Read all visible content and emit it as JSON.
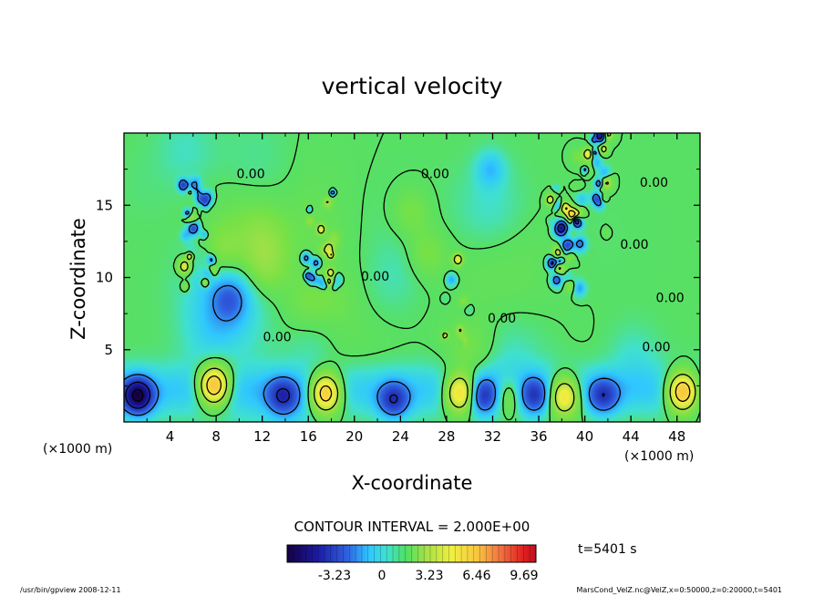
{
  "chart_data": {
    "type": "heatmap",
    "title": "vertical velocity",
    "xlabel": "X-coordinate",
    "ylabel": "Z-coordinate",
    "x_unit": "(×1000 m)",
    "z_unit": "(×1000 m)",
    "xlim": [
      0,
      50
    ],
    "ylim": [
      0,
      20
    ],
    "x_ticks": [
      "4",
      "8",
      "12",
      "16",
      "20",
      "24",
      "28",
      "32",
      "36",
      "40",
      "44",
      "48"
    ],
    "x_tick_values": [
      4,
      8,
      12,
      16,
      20,
      24,
      28,
      32,
      36,
      40,
      44,
      48
    ],
    "y_ticks": [
      "5",
      "10",
      "15"
    ],
    "y_tick_values": [
      5,
      10,
      15
    ],
    "contour_interval_text": "CONTOUR INTERVAL = 2.000E+00",
    "contour_label": "0.00",
    "contour_label_positions": [
      {
        "x": 11,
        "z": 17.2
      },
      {
        "x": 27,
        "z": 17.2
      },
      {
        "x": 46,
        "z": 16.6
      },
      {
        "x": 44.3,
        "z": 12.3
      },
      {
        "x": 47.4,
        "z": 8.6
      },
      {
        "x": 46.2,
        "z": 5.2
      },
      {
        "x": 32.8,
        "z": 7.2
      },
      {
        "x": 21.8,
        "z": 10.1
      },
      {
        "x": 13.3,
        "z": 5.9
      }
    ],
    "colorbar": {
      "ticks": [
        "-3.23",
        "0",
        "3.23",
        "6.46",
        "9.69"
      ],
      "tick_values": [
        -3.23,
        0,
        3.23,
        6.46,
        9.69
      ],
      "range": [
        -6.46,
        10.5
      ]
    },
    "time_label": "t=5401 s",
    "features": {
      "updraft_cores": [
        {
          "x": 7.8,
          "z": 2.5,
          "amp": 6.5
        },
        {
          "x": 17.5,
          "z": 2.0,
          "amp": 6.0
        },
        {
          "x": 29.2,
          "z": 2.0,
          "amp": 5.2
        },
        {
          "x": 38.2,
          "z": 1.8,
          "amp": 4.8
        },
        {
          "x": 48.5,
          "z": 2.1,
          "amp": 6.5
        },
        {
          "x": 33.4,
          "z": 1.8,
          "amp": 2.2
        }
      ],
      "downdraft_cores": [
        {
          "x": 1.2,
          "z": 1.8,
          "amp": -5.5
        },
        {
          "x": 13.8,
          "z": 1.8,
          "amp": -3.0
        },
        {
          "x": 23.4,
          "z": 1.5,
          "amp": -3.2
        },
        {
          "x": 31.2,
          "z": 1.8,
          "amp": -3.0
        },
        {
          "x": 35.6,
          "z": 1.8,
          "amp": -2.8
        },
        {
          "x": 41.6,
          "z": 1.8,
          "amp": -3.0
        }
      ],
      "turbulent_columns": [
        {
          "x": 6.2,
          "z": 13.0
        },
        {
          "x": 17.2,
          "z": 12.5
        },
        {
          "x": 38.3,
          "z": 12.8
        },
        {
          "x": 40.6,
          "z": 16.5
        },
        {
          "x": 28.7,
          "z": 8.6
        }
      ]
    }
  },
  "footer": {
    "left": "/usr/bin/gpview   2008-12-11",
    "right": "MarsCond_VelZ.nc@VelZ,x=0:50000,z=0:20000,t=5401"
  }
}
